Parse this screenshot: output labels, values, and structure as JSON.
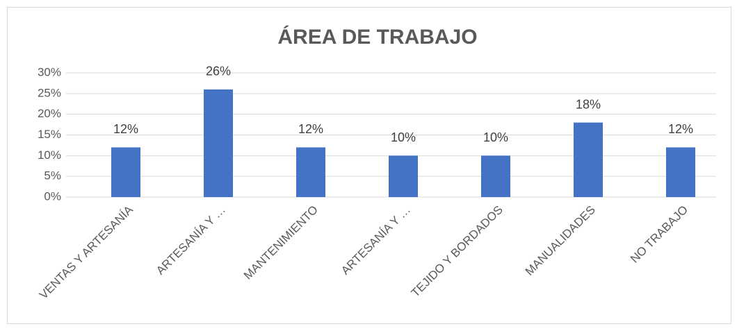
{
  "chart_data": {
    "type": "bar",
    "title": "ÁREA DE TRABAJO",
    "categories": [
      "VENTAS Y ARTESANÍA",
      "ARTESANÍA Y …",
      "MANTENIMIENTO",
      "ARTESANÍA Y …",
      "TEJIDO Y BORDADOS",
      "MANUALIDADES",
      "NO TRABAJO"
    ],
    "values": [
      12,
      26,
      12,
      10,
      10,
      18,
      12
    ],
    "value_labels": [
      "12%",
      "26%",
      "12%",
      "10%",
      "10%",
      "18%",
      "12%"
    ],
    "color": "#4472c4",
    "ylim": [
      0,
      30
    ],
    "yticks": [
      {
        "value": 0,
        "label": "0%"
      },
      {
        "value": 5,
        "label": "5%"
      },
      {
        "value": 10,
        "label": "10%"
      },
      {
        "value": 15,
        "label": "15%"
      },
      {
        "value": 20,
        "label": "20%"
      },
      {
        "value": 25,
        "label": "25%"
      },
      {
        "value": 30,
        "label": "30%"
      }
    ],
    "grid": true
  }
}
